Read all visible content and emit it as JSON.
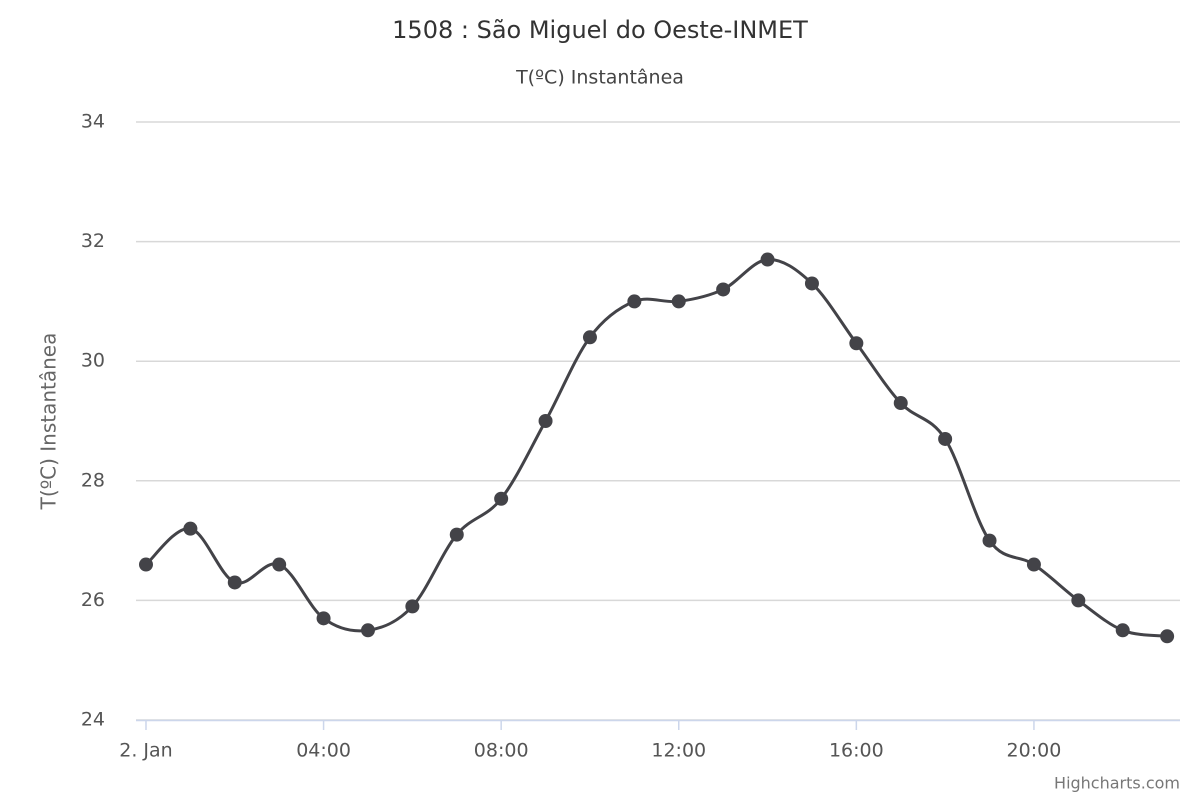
{
  "chart_data": {
    "type": "line",
    "title": "1508 : São Miguel do Oeste-INMET",
    "subtitle": "T(ºC) Instantânea",
    "y_label": "T(ºC) Instantânea",
    "credits": "Highcharts.com",
    "x": [
      0,
      1,
      2,
      3,
      4,
      5,
      6,
      7,
      8,
      9,
      10,
      11,
      12,
      13,
      14,
      15,
      16,
      17,
      18,
      19,
      20,
      21,
      22,
      23
    ],
    "series": [
      {
        "name": "T(ºC) Instantânea",
        "color": "#434348",
        "values": [
          26.6,
          27.2,
          26.3,
          26.6,
          25.7,
          25.5,
          25.9,
          27.1,
          27.7,
          29.0,
          30.4,
          31.0,
          31.0,
          31.2,
          31.7,
          31.3,
          30.3,
          29.3,
          28.7,
          27.0,
          26.6,
          26.0,
          25.5,
          25.4
        ]
      }
    ],
    "xlim": [
      -0.225,
      23.29
    ],
    "xticks": [
      {
        "value": 0,
        "label": "2. Jan"
      },
      {
        "value": 4,
        "label": "04:00"
      },
      {
        "value": 8,
        "label": "08:00"
      },
      {
        "value": 12,
        "label": "12:00"
      },
      {
        "value": 16,
        "label": "16:00"
      },
      {
        "value": 20,
        "label": "20:00"
      }
    ],
    "ylim": [
      24,
      34
    ],
    "yticks": [
      24,
      26,
      28,
      30,
      32,
      34
    ],
    "grid": true,
    "smooth": true
  }
}
